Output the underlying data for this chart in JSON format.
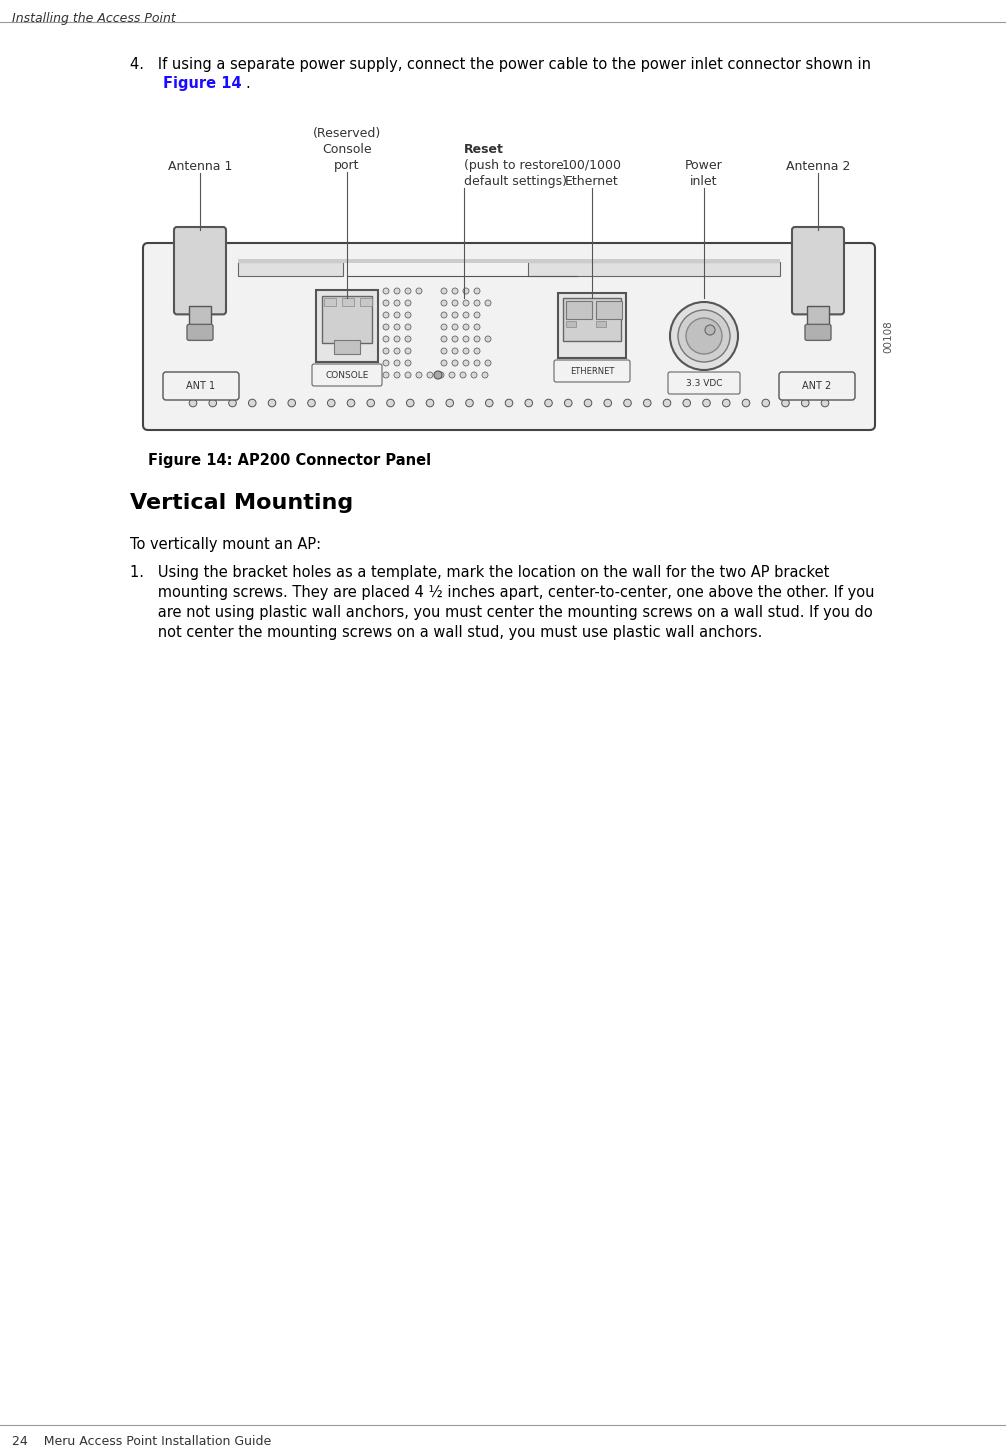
{
  "bg_color": "#ffffff",
  "header_text": "Installing the Access Point",
  "footer_text": "24    Meru Access Point Installation Guide",
  "link_color": "#1a0dff",
  "text_color": "#000000",
  "fig_caption": "Figure 14: AP200 Connector Panel",
  "section_title": "Vertical Mounting",
  "para_intro": "To vertically mount an AP:",
  "step4_line1": "4.   If using a separate power supply, connect the power cable to the power inlet connector shown in",
  "step4_fig": "Figure 14",
  "step4_period": ".",
  "step1_lines": [
    "1.   Using the bracket holes as a template, mark the location on the wall for the two AP bracket",
    "      mounting screws. They are placed 4 ½ inches apart, center-to-center, one above the other. If you",
    "      are not using plastic wall anchors, you must center the mounting screws on a wall stud. If you do",
    "      not center the mounting screws on a wall stud, you must use plastic wall anchors."
  ],
  "label_antenna1": "Antenna 1",
  "label_reserved": "(Reserved)",
  "label_console": "Console",
  "label_port": "port",
  "label_reset": "Reset",
  "label_reset2": "(push to restore",
  "label_reset3": "default settings)",
  "label_eth1": "100/1000",
  "label_eth2": "Ethernet",
  "label_power1": "Power",
  "label_power2": "inlet",
  "label_antenna2": "Antenna 2",
  "dev_ant1": "ANT 1",
  "dev_console": "CONSOLE",
  "dev_ethernet": "ETHERNET",
  "dev_vdc": "3.3 VDC",
  "dev_ant2": "ANT 2",
  "dev_serial": "00108"
}
